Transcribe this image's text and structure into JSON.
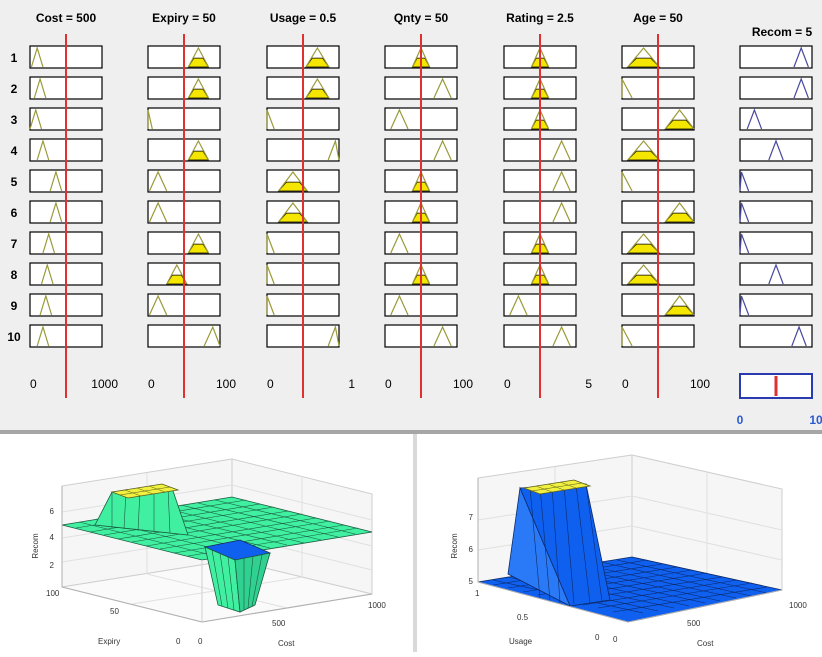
{
  "rule_viewer": {
    "inputs": [
      {
        "label": "Cost = 500",
        "min": "0",
        "max": "1000",
        "value_fraction": 0.5
      },
      {
        "label": "Expiry = 50",
        "min": "0",
        "max": "100",
        "value_fraction": 0.5
      },
      {
        "label": "Usage = 0.5",
        "min": "0",
        "max": "1",
        "value_fraction": 0.5
      },
      {
        "label": "Qnty = 50",
        "min": "0",
        "max": "100",
        "value_fraction": 0.5
      },
      {
        "label": "Rating = 2.5",
        "min": "0",
        "max": "5",
        "value_fraction": 0.5
      },
      {
        "label": "Age = 50",
        "min": "0",
        "max": "100",
        "value_fraction": 0.5
      }
    ],
    "output": {
      "label": "Recom = 5",
      "min": "0",
      "max": "10",
      "value_fraction": 0.5
    },
    "rule_numbers": [
      "1",
      "2",
      "3",
      "4",
      "5",
      "6",
      "7",
      "8",
      "9",
      "10"
    ],
    "colors": {
      "membership_line": "#9a9a3a",
      "fill": "#f5e600",
      "value_line": "#e03030",
      "output_line": "#4a4aa0",
      "axis_text_blue": "#2a5ad0"
    }
  },
  "surface_left": {
    "zlabel": "Recom",
    "xlabel": "Expiry",
    "ylabel": "Cost",
    "z_ticks": [
      "2",
      "4",
      "6"
    ],
    "x_ticks": [
      "100",
      "50",
      "0"
    ],
    "y_ticks": [
      "0",
      "500",
      "1000"
    ],
    "color": "#40f0a0"
  },
  "surface_right": {
    "zlabel": "Recom",
    "xlabel": "Usage",
    "ylabel": "Cost",
    "z_ticks": [
      "5",
      "6",
      "7"
    ],
    "x_ticks": [
      "1",
      "0.5",
      "0"
    ],
    "y_ticks": [
      "0",
      "500",
      "1000"
    ],
    "color": "#1060f0"
  }
}
